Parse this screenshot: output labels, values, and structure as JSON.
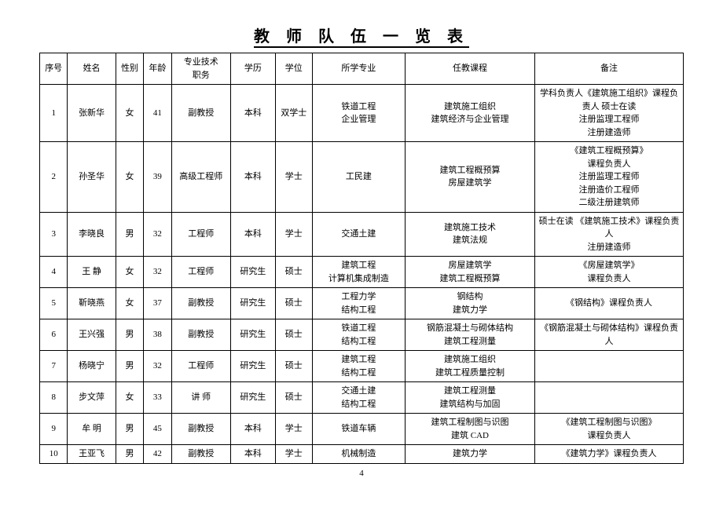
{
  "title": "教 师 队 伍 一 览 表",
  "pageNumber": "4",
  "headers": {
    "idx": "序号",
    "name": "姓名",
    "sex": "性别",
    "age": "年龄",
    "title": "专业技术\n职务",
    "edu": "学历",
    "deg": "学位",
    "major": "所学专业",
    "course": "任教课程",
    "note": "备注"
  },
  "rows": [
    {
      "idx": "1",
      "name": "张新华",
      "sex": "女",
      "age": "41",
      "title": "副教授",
      "edu": "本科",
      "deg": "双学士",
      "major": "铁道工程\n企业管理",
      "course": "建筑施工组织\n建筑经济与企业管理",
      "note": "学科负责人《建筑施工组织》课程负责人  硕士在读\n注册监理工程师\n注册建造师"
    },
    {
      "idx": "2",
      "name": "孙圣华",
      "sex": "女",
      "age": "39",
      "title": "高级工程师",
      "edu": "本科",
      "deg": "学士",
      "major": "工民建",
      "course": "建筑工程概预算\n房屋建筑学",
      "note": "《建筑工程概预算》\n课程负责人\n注册监理工程师\n注册造价工程师\n二级注册建筑师"
    },
    {
      "idx": "3",
      "name": "李晓良",
      "sex": "男",
      "age": "32",
      "title": "工程师",
      "edu": "本科",
      "deg": "学士",
      "major": "交通土建",
      "course": "建筑施工技术\n建筑法规",
      "note": "硕士在读  《建筑施工技术》课程负责人\n注册建造师"
    },
    {
      "idx": "4",
      "name": "王  静",
      "sex": "女",
      "age": "32",
      "title": "工程师",
      "edu": "研究生",
      "deg": "硕士",
      "major": "建筑工程\n计算机集成制造",
      "course": "房屋建筑学\n建筑工程概预算",
      "note": "《房屋建筑学》\n课程负责人"
    },
    {
      "idx": "5",
      "name": "靳晓燕",
      "sex": "女",
      "age": "37",
      "title": "副教授",
      "edu": "研究生",
      "deg": "硕士",
      "major": "工程力学\n结构工程",
      "course": "钢结构\n建筑力学",
      "note": "《钢结构》课程负责人"
    },
    {
      "idx": "6",
      "name": "王兴强",
      "sex": "男",
      "age": "38",
      "title": "副教授",
      "edu": "研究生",
      "deg": "硕士",
      "major": "铁道工程\n结构工程",
      "course": "钢筋混凝土与砌体结构\n建筑工程测量",
      "note": "《钢筋混凝土与砌体结构》课程负责人"
    },
    {
      "idx": "7",
      "name": "杨晓宁",
      "sex": "男",
      "age": "32",
      "title": "工程师",
      "edu": "研究生",
      "deg": "硕士",
      "major": "建筑工程\n结构工程",
      "course": "建筑施工组织\n建筑工程质量控制",
      "note": ""
    },
    {
      "idx": "8",
      "name": "步文萍",
      "sex": "女",
      "age": "33",
      "title": "讲  师",
      "edu": "研究生",
      "deg": "硕士",
      "major": "交通土建\n结构工程",
      "course": "建筑工程测量\n建筑结构与加固",
      "note": ""
    },
    {
      "idx": "9",
      "name": "牟  明",
      "sex": "男",
      "age": "45",
      "title": "副教授",
      "edu": "本科",
      "deg": "学士",
      "major": "铁道车辆",
      "course": "建筑工程制图与识图\n建筑 CAD",
      "note": "《建筑工程制图与识图》\n课程负责人"
    },
    {
      "idx": "10",
      "name": "王亚飞",
      "sex": "男",
      "age": "42",
      "title": "副教授",
      "edu": "本科",
      "deg": "学士",
      "major": "机械制造",
      "course": "建筑力学",
      "note": "《建筑力学》课程负责人"
    }
  ]
}
